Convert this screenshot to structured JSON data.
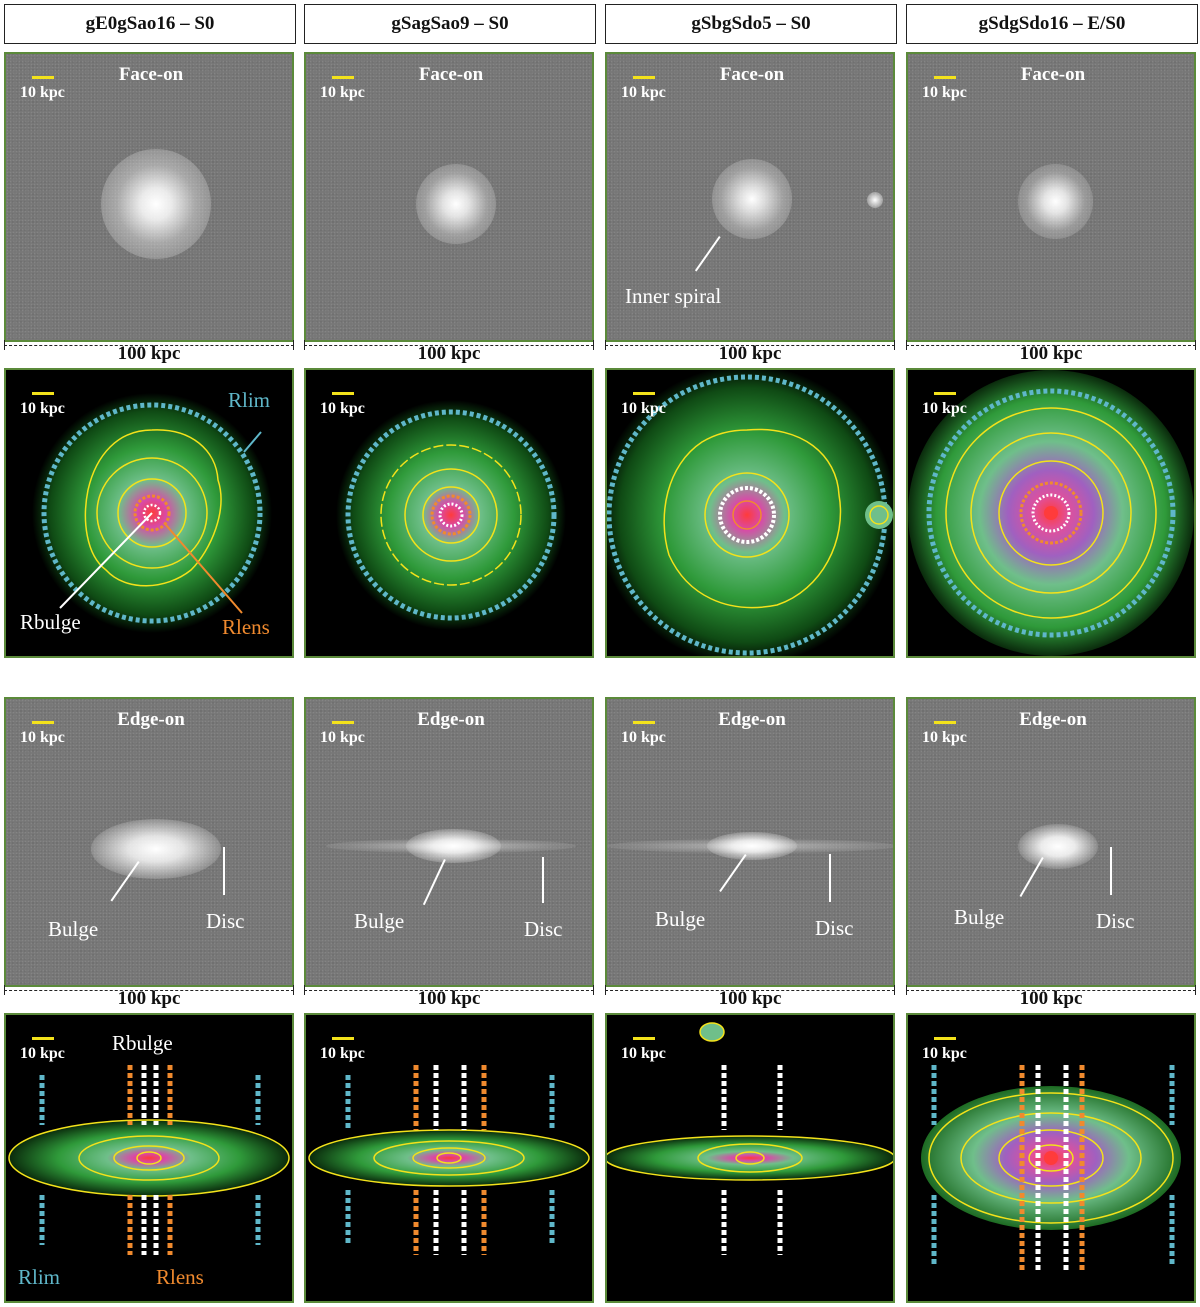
{
  "columns": [
    {
      "title": "gE0gSao16 – S0",
      "face_label": "Face-on",
      "edge_label": "Edge-on",
      "scale_label": "10 kpc",
      "face_axis": "100 kpc",
      "edge_axis": "100 kpc",
      "face_annotation": "",
      "face_map_labels": {
        "rlim": "Rlim",
        "rbulge": "Rbulge",
        "rlens": "Rlens"
      },
      "edge_annotations": {
        "bulge": "Bulge",
        "disc": "Disc"
      },
      "edge_map_labels": {
        "rbulge": "Rbulge",
        "rlim": "Rlim",
        "rlens": "Rlens"
      }
    },
    {
      "title": "gSagSao9 – S0",
      "face_label": "Face-on",
      "edge_label": "Edge-on",
      "scale_label": "10 kpc",
      "face_axis": "100 kpc",
      "edge_axis": "100 kpc",
      "face_annotation": "",
      "edge_annotations": {
        "bulge": "Bulge",
        "disc": "Disc"
      }
    },
    {
      "title": "gSbgSdo5 – S0",
      "face_label": "Face-on",
      "edge_label": "Edge-on",
      "scale_label": "10 kpc",
      "face_axis": "100 kpc",
      "edge_axis": "100 kpc",
      "face_annotation": "Inner spiral",
      "edge_annotations": {
        "bulge": "Bulge",
        "disc": "Disc"
      }
    },
    {
      "title": "gSdgSdo16 – E/S0",
      "face_label": "Face-on",
      "edge_label": "Edge-on",
      "scale_label": "10 kpc",
      "face_axis": "100 kpc",
      "edge_axis": "100 kpc",
      "face_annotation": "",
      "edge_annotations": {
        "bulge": "Bulge",
        "disc": "Disc"
      }
    }
  ],
  "colors": {
    "rlim": "#5fb7c9",
    "rlens": "#f08a2e",
    "rbulge": "#ffffff",
    "contour": "#f3e21b",
    "panel_border": "#5b8a3a"
  }
}
